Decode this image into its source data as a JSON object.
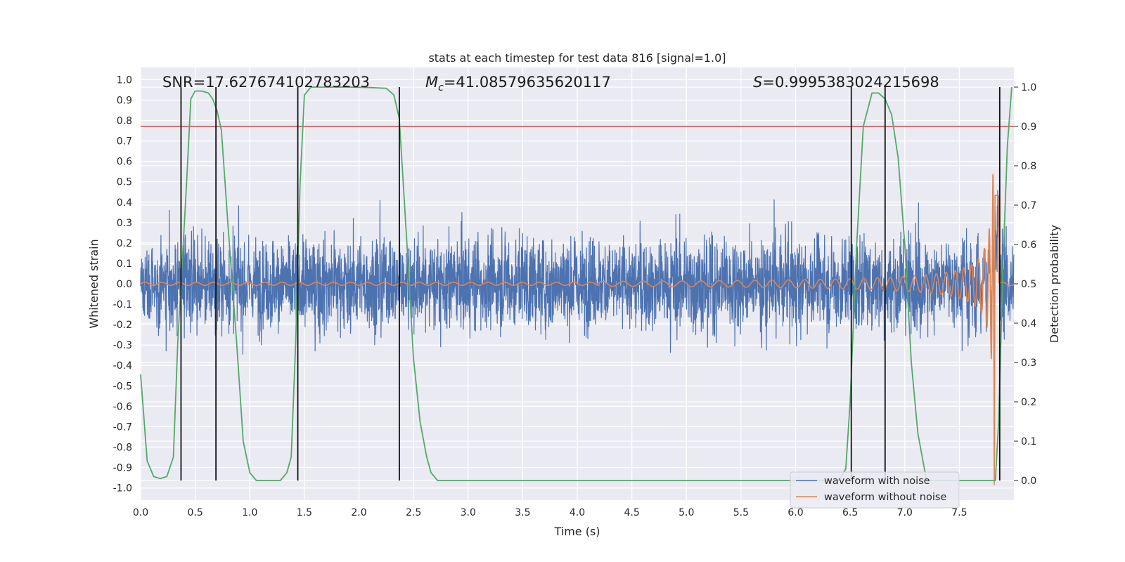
{
  "chart_data": {
    "type": "line",
    "title": "stats at each timestep for test data 816 [signal=1.0]",
    "xlabel": "Time (s)",
    "ylabel": "Whitened strain",
    "y2label": "Detection probability",
    "xlim": [
      0,
      8.0
    ],
    "ylim": [
      -1.06,
      1.06
    ],
    "y2lim": [
      -0.05,
      1.05
    ],
    "xticks": [
      "0.0",
      "0.5",
      "1.0",
      "1.5",
      "2.0",
      "2.5",
      "3.0",
      "3.5",
      "4.0",
      "4.5",
      "5.0",
      "5.5",
      "6.0",
      "6.5",
      "7.0",
      "7.5"
    ],
    "xtick_values": [
      0,
      0.5,
      1,
      1.5,
      2,
      2.5,
      3,
      3.5,
      4,
      4.5,
      5,
      5.5,
      6,
      6.5,
      7,
      7.5
    ],
    "yticks": [
      "1.0",
      "0.9",
      "0.8",
      "0.7",
      "0.6",
      "0.5",
      "0.4",
      "0.3",
      "0.2",
      "0.1",
      "0.0",
      "-0.1",
      "-0.2",
      "-0.3",
      "-0.4",
      "-0.5",
      "-0.6",
      "-0.7",
      "-0.8",
      "-0.9",
      "-1.0"
    ],
    "ytick_values": [
      1,
      0.9,
      0.8,
      0.7,
      0.6,
      0.5,
      0.4,
      0.3,
      0.2,
      0.1,
      0,
      -0.1,
      -0.2,
      -0.3,
      -0.4,
      -0.5,
      -0.6,
      -0.7,
      -0.8,
      -0.9,
      -1.0
    ],
    "y2ticks": [
      "1.0",
      "0.9",
      "0.8",
      "0.7",
      "0.6",
      "0.5",
      "0.4",
      "0.3",
      "0.2",
      "0.1",
      "0.0"
    ],
    "y2tick_values": [
      1,
      0.9,
      0.8,
      0.7,
      0.6,
      0.5,
      0.4,
      0.3,
      0.2,
      0.1,
      0
    ],
    "grid": true,
    "legend_position": "bottom-right",
    "annotations": {
      "snr": "SNR=17.627674102783203",
      "mc_symbol": "M",
      "mc_sub": "c",
      "mc_value": "=41.08579635620117",
      "s_symbol": "S",
      "s_value": "=0.9995383024215698"
    },
    "threshold_y2": 0.9,
    "vertical_lines": [
      0.37,
      0.69,
      1.44,
      2.37,
      6.51,
      6.82,
      7.87
    ],
    "series": [
      {
        "name": "waveform with noise",
        "color": "#4c72b0",
        "noise_envelope": 0.2,
        "description_peaks": [
          0.32,
          0.4,
          0.41
        ]
      },
      {
        "name": "waveform without noise",
        "color": "#dd8452",
        "chirp_start": 4.2,
        "merger_time": 7.83,
        "peak_amplitude": 1.0
      },
      {
        "color": "#55a868",
        "axis": "right",
        "x": [
          0.0,
          0.06,
          0.12,
          0.18,
          0.24,
          0.3,
          0.34,
          0.38,
          0.42,
          0.46,
          0.5,
          0.56,
          0.62,
          0.66,
          0.7,
          0.74,
          0.8,
          0.88,
          0.94,
          1.0,
          1.06,
          1.12,
          1.2,
          1.28,
          1.34,
          1.38,
          1.42,
          1.46,
          1.5,
          1.56,
          1.7,
          1.9,
          2.1,
          2.25,
          2.32,
          2.37,
          2.44,
          2.5,
          2.56,
          2.62,
          2.66,
          2.72,
          2.8,
          3.0,
          4.0,
          5.0,
          6.0,
          6.4,
          6.46,
          6.5,
          6.56,
          6.62,
          6.7,
          6.76,
          6.82,
          6.88,
          6.94,
          7.0,
          7.06,
          7.12,
          7.2,
          7.4,
          7.6,
          7.8,
          7.83,
          7.86,
          7.9,
          7.94,
          7.98
        ],
        "y": [
          0.27,
          0.05,
          0.01,
          0.005,
          0.01,
          0.06,
          0.35,
          0.55,
          0.75,
          0.97,
          0.99,
          0.99,
          0.985,
          0.97,
          0.94,
          0.89,
          0.65,
          0.35,
          0.1,
          0.02,
          0.0,
          0.0,
          0.0,
          0.0,
          0.02,
          0.06,
          0.35,
          0.75,
          0.98,
          1.0,
          1.0,
          1.0,
          0.999,
          0.997,
          0.98,
          0.92,
          0.6,
          0.31,
          0.15,
          0.06,
          0.02,
          0.0,
          0.0,
          0.0,
          0.0,
          0.0,
          0.0,
          0.0,
          0.03,
          0.2,
          0.6,
          0.9,
          0.985,
          0.985,
          0.97,
          0.93,
          0.82,
          0.6,
          0.3,
          0.12,
          0.0,
          0.0,
          0.0,
          0.0,
          0.0,
          0.15,
          0.55,
          0.85,
          1.0
        ]
      }
    ]
  }
}
